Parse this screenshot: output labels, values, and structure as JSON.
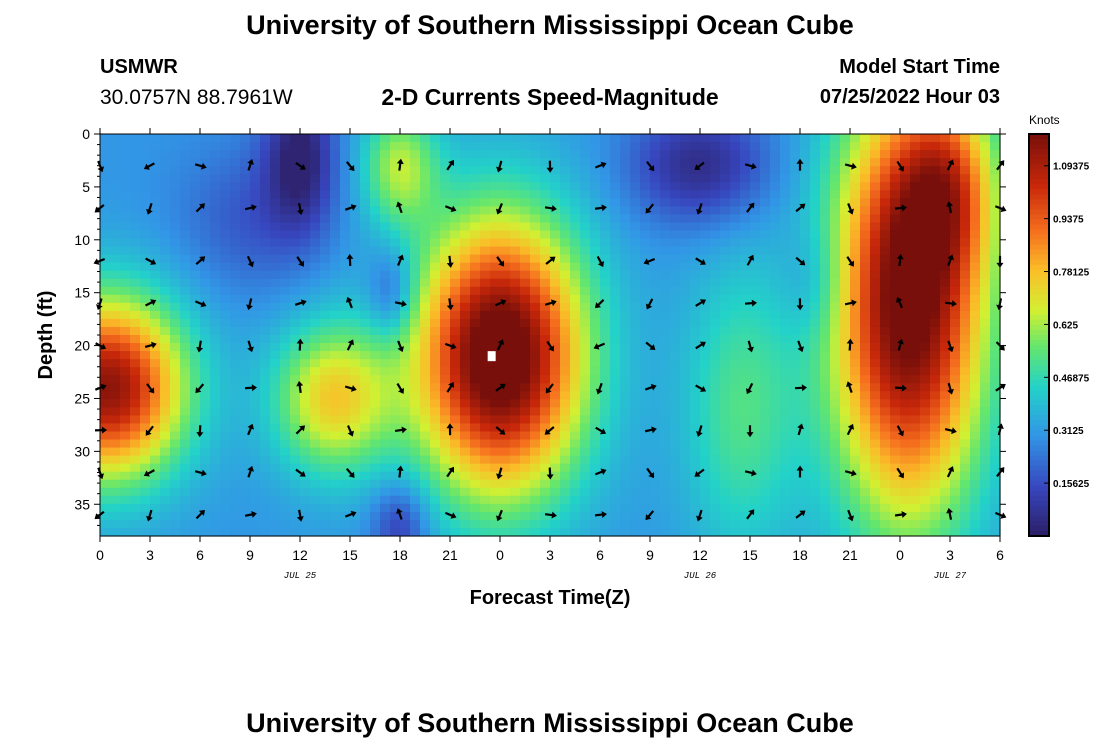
{
  "header": {
    "title": "University of Southern Mississippi Ocean Cube",
    "station_name": "USMWR",
    "station_coords": "30.0757N  88.7961W",
    "plot_title": "2-D Currents Speed-Magnitude",
    "model_start_label": "Model Start Time",
    "model_start_time": "07/25/2022 Hour 03"
  },
  "footer": {
    "title": "University of Southern Mississippi Ocean Cube"
  },
  "chart_data": {
    "type": "heatmap",
    "title": "2-D Currents Speed-Magnitude",
    "xlabel": "Forecast Time(Z)",
    "ylabel": "Depth (ft)",
    "x_tick_labels": [
      "0",
      "3",
      "6",
      "9",
      "12",
      "15",
      "18",
      "21",
      "0",
      "3",
      "6",
      "9",
      "12",
      "15",
      "18",
      "21",
      "0",
      "3",
      "6"
    ],
    "date_labels": [
      {
        "label": "JUL 25",
        "at_hour": 12
      },
      {
        "label": "JUL 26",
        "at_hour": 36
      },
      {
        "label": "JUL 27",
        "at_hour": 51
      }
    ],
    "xlim_hours": [
      0,
      54
    ],
    "y_tick_labels": [
      "0",
      "5",
      "10",
      "15",
      "20",
      "25",
      "30",
      "35"
    ],
    "ylim_ft": [
      0,
      38
    ],
    "colorbar": {
      "units": "Knots",
      "vmin": 0,
      "vmax": 1.1875,
      "tick_labels": [
        "0.15625",
        "0.3125",
        "0.46875",
        "0.625",
        "0.78125",
        "0.9375",
        "1.09375"
      ],
      "tick_values": [
        0.15625,
        0.3125,
        0.46875,
        0.625,
        0.78125,
        0.9375,
        1.09375
      ]
    },
    "speed_features_knots": [
      {
        "name": "early-mid-depth-core",
        "hour": 0.5,
        "depth_ft": 24,
        "speed": 1.05
      },
      {
        "name": "morning-jul25-band",
        "hour": 14,
        "depth_ft": 25,
        "speed": 0.62
      },
      {
        "name": "noon-jul25-surface",
        "hour": 18,
        "depth_ft": 3,
        "speed": 0.55
      },
      {
        "name": "midnight-core",
        "hour": 24,
        "depth_ft": 21,
        "speed": 1.15
      },
      {
        "name": "jul26-mid-band",
        "hour": 38.5,
        "depth_ft": 26,
        "speed": 0.48
      },
      {
        "name": "jul27-core",
        "hour": 48.5,
        "depth_ft": 16,
        "speed": 1.12
      },
      {
        "name": "jul25-noon-low",
        "hour": 12,
        "depth_ft": 2,
        "speed": 0.06
      },
      {
        "name": "jul26-noon-low",
        "hour": 36,
        "depth_ft": 3,
        "speed": 0.08
      }
    ],
    "vector_columns_hours": [
      0,
      3,
      6,
      9,
      12,
      15,
      18,
      21,
      24,
      27,
      30,
      33,
      36,
      39,
      42,
      45,
      48,
      51,
      54
    ],
    "vector_rows_ft": [
      3,
      7,
      12,
      16,
      20,
      24,
      28,
      32,
      36
    ],
    "marker": {
      "hour": 23.5,
      "depth_ft": 21
    }
  }
}
